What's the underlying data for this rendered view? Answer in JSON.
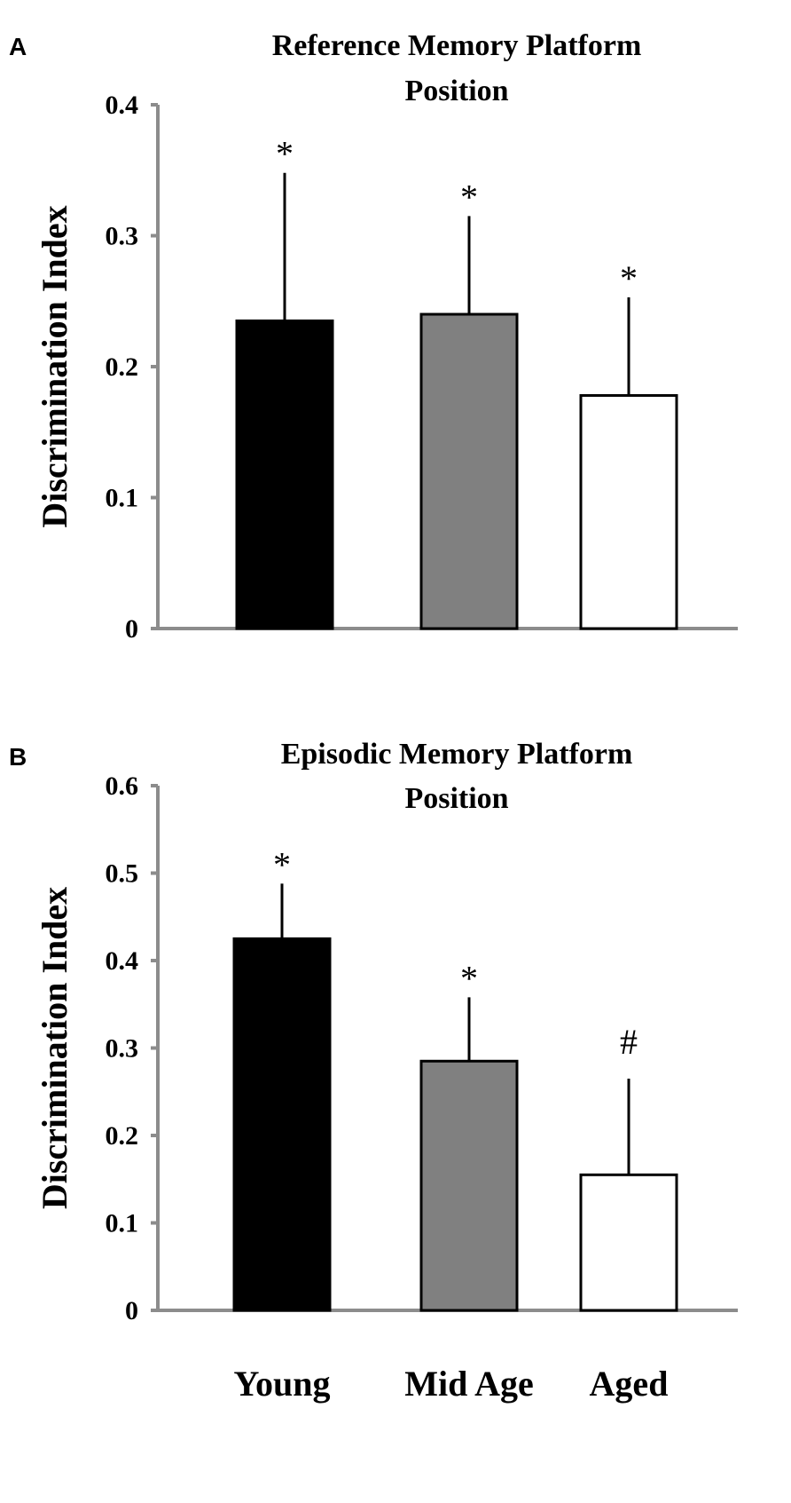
{
  "chart_data": [
    {
      "type": "bar",
      "panel": "A",
      "title": [
        "Reference Memory Platform",
        "Position"
      ],
      "ylabel": "Discrimination Index",
      "xlabel": "",
      "ylim": [
        0,
        0.4
      ],
      "yticks": [
        "0",
        "0.1",
        "0.2",
        "0.3",
        "0.4"
      ],
      "categories": [
        "Young",
        "Mid Age",
        "Aged"
      ],
      "category_labels_shown": false,
      "values": [
        0.235,
        0.24,
        0.178
      ],
      "error_upper": [
        0.348,
        0.315,
        0.253
      ],
      "significance": [
        "*",
        "*",
        "*"
      ],
      "colors": [
        "#000000",
        "#808080",
        "#ffffff"
      ]
    },
    {
      "type": "bar",
      "panel": "B",
      "title": [
        "Episodic  Memory Platform",
        "Position"
      ],
      "ylabel": "Discrimination Index",
      "xlabel": "",
      "ylim": [
        0,
        0.6
      ],
      "yticks": [
        "0",
        "0.1",
        "0.2",
        "0.3",
        "0.4",
        "0.5",
        "0.6"
      ],
      "categories": [
        "Young",
        "Mid Age",
        "Aged"
      ],
      "category_labels_shown": true,
      "values": [
        0.425,
        0.285,
        0.155
      ],
      "error_upper": [
        0.488,
        0.358,
        0.265
      ],
      "significance": [
        "*",
        "*",
        "#"
      ],
      "colors": [
        "#000000",
        "#808080",
        "#ffffff"
      ]
    }
  ]
}
